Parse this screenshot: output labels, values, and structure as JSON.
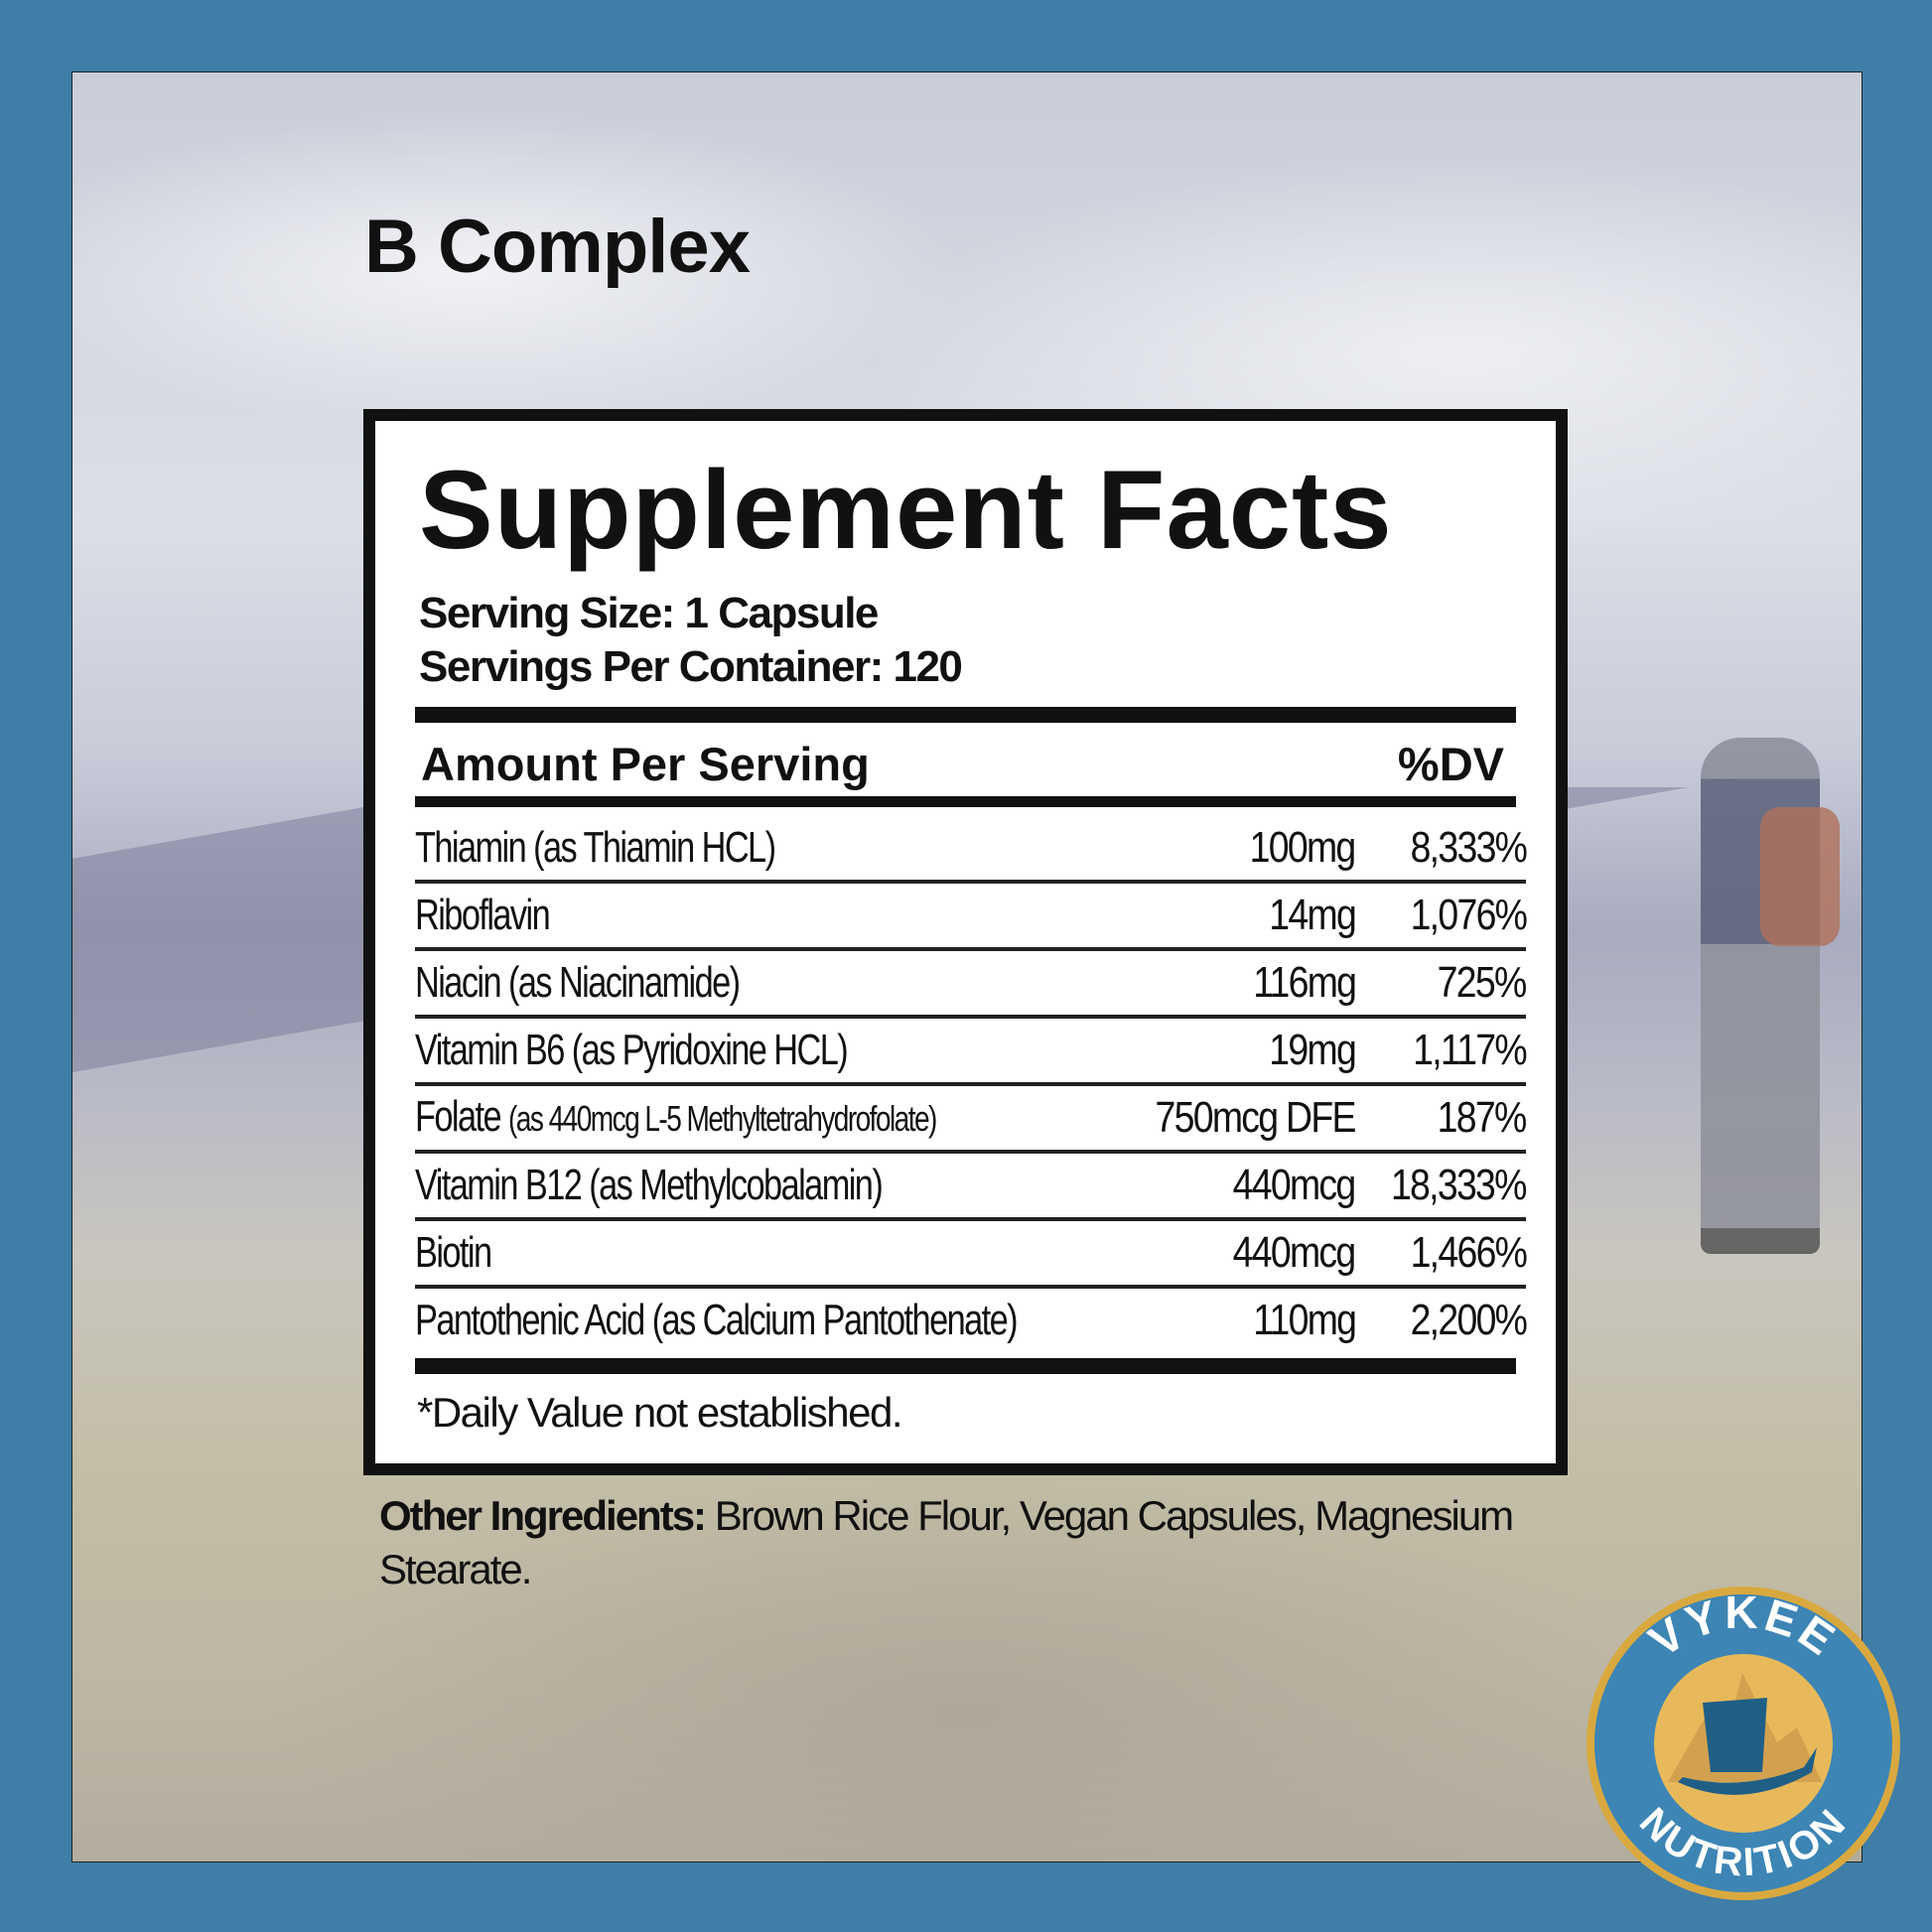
{
  "product_title": "B Complex",
  "facts": {
    "heading": "Supplement Facts",
    "serving_size": "Serving Size: 1 Capsule",
    "servings_per_container": "Servings Per Container: 120",
    "amount_header": "Amount Per Serving",
    "dv_header": "%DV",
    "rows": [
      {
        "name": "Thiamin (as Thiamin HCL)",
        "note": "",
        "amount": "100mg",
        "dv": "8,333%"
      },
      {
        "name": "Riboflavin",
        "note": "",
        "amount": "14mg",
        "dv": "1,076%"
      },
      {
        "name": "Niacin (as Niacinamide)",
        "note": "",
        "amount": "116mg",
        "dv": "725%"
      },
      {
        "name": "Vitamin B6 (as Pyridoxine HCL)",
        "note": "",
        "amount": "19mg",
        "dv": "1,117%"
      },
      {
        "name": "Folate",
        "note": "(as 440mcg L-5 Methyltetrahydrofolate)",
        "amount": "750mcg DFE",
        "dv": "187%"
      },
      {
        "name": "Vitamin B12 (as Methylcobalamin)",
        "note": "",
        "amount": "440mcg",
        "dv": "18,333%"
      },
      {
        "name": "Biotin",
        "note": "",
        "amount": "440mcg",
        "dv": "1,466%"
      },
      {
        "name": "Pantothenic Acid (as Calcium Pantothenate)",
        "note": "",
        "amount": "110mg",
        "dv": "2,200%"
      }
    ],
    "footnote": "*Daily Value not established."
  },
  "other_ingredients": {
    "label": "Other Ingredients:",
    "text": " Brown Rice Flour, Vegan Capsules, Magnesium Stearate."
  },
  "logo": {
    "top_text": "VYKEE",
    "bottom_text": "NUTRITION"
  },
  "colors": {
    "frame": "#3f7ea8",
    "logo_blue": "#3d85b5",
    "logo_gold": "#e8b95a",
    "ship": "#1f5f86"
  }
}
